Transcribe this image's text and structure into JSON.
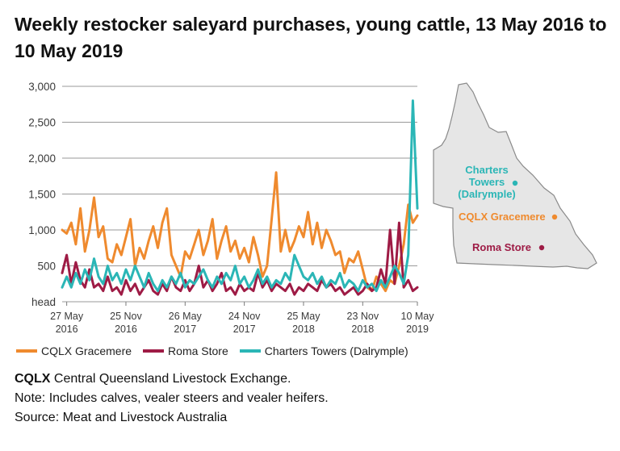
{
  "title": "Weekly restocker saleyard purchases, young cattle, 13 May 2016 to 10 May 2019",
  "chart_data": {
    "type": "line",
    "ylabel_unit": "head",
    "ylim": [
      0,
      3000
    ],
    "yticks": [
      "3,000",
      "2,500",
      "2,000",
      "1,500",
      "1,000",
      "500"
    ],
    "xticks": [
      {
        "date": "2016-05-27",
        "l1": "27 May",
        "l2": "2016"
      },
      {
        "date": "2016-11-25",
        "l1": "25 Nov",
        "l2": "2016"
      },
      {
        "date": "2017-05-26",
        "l1": "26 May",
        "l2": "2017"
      },
      {
        "date": "2017-11-24",
        "l1": "24 Nov",
        "l2": "2017"
      },
      {
        "date": "2018-05-25",
        "l1": "25 May",
        "l2": "2018"
      },
      {
        "date": "2018-11-23",
        "l1": "23 Nov",
        "l2": "2018"
      },
      {
        "date": "2019-05-10",
        "l1": "10 May",
        "l2": "2019"
      }
    ],
    "xrange": [
      "2016-05-13",
      "2019-05-10"
    ],
    "grid": true,
    "legend_position": "bottom",
    "series": [
      {
        "name": "CQLX Gracemere",
        "color": "#ef8a2e",
        "points": [
          [
            "2016-05-13",
            1000
          ],
          [
            "2016-05-27",
            950
          ],
          [
            "2016-06-10",
            1100
          ],
          [
            "2016-06-24",
            800
          ],
          [
            "2016-07-08",
            1300
          ],
          [
            "2016-07-22",
            700
          ],
          [
            "2016-08-05",
            1000
          ],
          [
            "2016-08-19",
            1450
          ],
          [
            "2016-09-02",
            900
          ],
          [
            "2016-09-16",
            1050
          ],
          [
            "2016-09-30",
            600
          ],
          [
            "2016-10-14",
            550
          ],
          [
            "2016-10-28",
            800
          ],
          [
            "2016-11-11",
            650
          ],
          [
            "2016-11-25",
            900
          ],
          [
            "2016-12-09",
            1150
          ],
          [
            "2016-12-23",
            500
          ],
          [
            "2017-01-06",
            750
          ],
          [
            "2017-01-20",
            600
          ],
          [
            "2017-02-03",
            850
          ],
          [
            "2017-02-17",
            1050
          ],
          [
            "2017-03-03",
            750
          ],
          [
            "2017-03-17",
            1100
          ],
          [
            "2017-03-31",
            1300
          ],
          [
            "2017-04-14",
            650
          ],
          [
            "2017-04-28",
            500
          ],
          [
            "2017-05-12",
            350
          ],
          [
            "2017-05-26",
            700
          ],
          [
            "2017-06-09",
            600
          ],
          [
            "2017-06-23",
            800
          ],
          [
            "2017-07-07",
            1000
          ],
          [
            "2017-07-21",
            650
          ],
          [
            "2017-08-04",
            850
          ],
          [
            "2017-08-18",
            1150
          ],
          [
            "2017-09-01",
            600
          ],
          [
            "2017-09-15",
            850
          ],
          [
            "2017-09-29",
            1050
          ],
          [
            "2017-10-13",
            700
          ],
          [
            "2017-10-27",
            850
          ],
          [
            "2017-11-10",
            600
          ],
          [
            "2017-11-24",
            750
          ],
          [
            "2017-12-08",
            550
          ],
          [
            "2017-12-22",
            900
          ],
          [
            "2018-01-05",
            650
          ],
          [
            "2018-01-19",
            350
          ],
          [
            "2018-02-02",
            500
          ],
          [
            "2018-02-16",
            1150
          ],
          [
            "2018-03-02",
            1800
          ],
          [
            "2018-03-16",
            700
          ],
          [
            "2018-03-30",
            1000
          ],
          [
            "2018-04-13",
            700
          ],
          [
            "2018-04-27",
            850
          ],
          [
            "2018-05-11",
            1050
          ],
          [
            "2018-05-25",
            900
          ],
          [
            "2018-06-08",
            1250
          ],
          [
            "2018-06-22",
            800
          ],
          [
            "2018-07-06",
            1100
          ],
          [
            "2018-07-20",
            750
          ],
          [
            "2018-08-03",
            1000
          ],
          [
            "2018-08-17",
            850
          ],
          [
            "2018-08-31",
            650
          ],
          [
            "2018-09-14",
            700
          ],
          [
            "2018-09-28",
            400
          ],
          [
            "2018-10-12",
            600
          ],
          [
            "2018-10-26",
            550
          ],
          [
            "2018-11-09",
            700
          ],
          [
            "2018-11-23",
            450
          ],
          [
            "2018-12-07",
            200
          ],
          [
            "2018-12-21",
            150
          ],
          [
            "2019-01-04",
            350
          ],
          [
            "2019-01-18",
            250
          ],
          [
            "2019-02-01",
            150
          ],
          [
            "2019-02-15",
            300
          ],
          [
            "2019-03-01",
            250
          ],
          [
            "2019-03-15",
            500
          ],
          [
            "2019-03-29",
            800
          ],
          [
            "2019-04-12",
            1350
          ],
          [
            "2019-04-26",
            1100
          ],
          [
            "2019-05-10",
            1200
          ]
        ]
      },
      {
        "name": "Roma Store",
        "color": "#9e1b45",
        "points": [
          [
            "2016-05-13",
            400
          ],
          [
            "2016-05-27",
            650
          ],
          [
            "2016-06-10",
            250
          ],
          [
            "2016-06-24",
            550
          ],
          [
            "2016-07-08",
            300
          ],
          [
            "2016-07-22",
            200
          ],
          [
            "2016-08-05",
            450
          ],
          [
            "2016-08-19",
            200
          ],
          [
            "2016-09-02",
            250
          ],
          [
            "2016-09-16",
            150
          ],
          [
            "2016-09-30",
            350
          ],
          [
            "2016-10-14",
            150
          ],
          [
            "2016-10-28",
            200
          ],
          [
            "2016-11-11",
            100
          ],
          [
            "2016-11-25",
            300
          ],
          [
            "2016-12-09",
            150
          ],
          [
            "2016-12-23",
            250
          ],
          [
            "2017-01-06",
            100
          ],
          [
            "2017-01-20",
            200
          ],
          [
            "2017-02-03",
            300
          ],
          [
            "2017-02-17",
            150
          ],
          [
            "2017-03-03",
            100
          ],
          [
            "2017-03-17",
            250
          ],
          [
            "2017-03-31",
            150
          ],
          [
            "2017-04-14",
            350
          ],
          [
            "2017-04-28",
            200
          ],
          [
            "2017-05-12",
            150
          ],
          [
            "2017-05-26",
            300
          ],
          [
            "2017-06-09",
            150
          ],
          [
            "2017-06-23",
            250
          ],
          [
            "2017-07-07",
            500
          ],
          [
            "2017-07-21",
            200
          ],
          [
            "2017-08-04",
            300
          ],
          [
            "2017-08-18",
            150
          ],
          [
            "2017-09-01",
            250
          ],
          [
            "2017-09-15",
            400
          ],
          [
            "2017-09-29",
            150
          ],
          [
            "2017-10-13",
            200
          ],
          [
            "2017-10-27",
            100
          ],
          [
            "2017-11-10",
            250
          ],
          [
            "2017-11-24",
            150
          ],
          [
            "2017-12-08",
            200
          ],
          [
            "2017-12-22",
            150
          ],
          [
            "2018-01-05",
            400
          ],
          [
            "2018-01-19",
            200
          ],
          [
            "2018-02-02",
            300
          ],
          [
            "2018-02-16",
            150
          ],
          [
            "2018-03-02",
            250
          ],
          [
            "2018-03-16",
            200
          ],
          [
            "2018-03-30",
            150
          ],
          [
            "2018-04-13",
            250
          ],
          [
            "2018-04-27",
            100
          ],
          [
            "2018-05-11",
            200
          ],
          [
            "2018-05-25",
            150
          ],
          [
            "2018-06-08",
            250
          ],
          [
            "2018-06-22",
            200
          ],
          [
            "2018-07-06",
            150
          ],
          [
            "2018-07-20",
            300
          ],
          [
            "2018-08-03",
            200
          ],
          [
            "2018-08-17",
            250
          ],
          [
            "2018-08-31",
            150
          ],
          [
            "2018-09-14",
            200
          ],
          [
            "2018-09-28",
            100
          ],
          [
            "2018-10-12",
            150
          ],
          [
            "2018-10-26",
            200
          ],
          [
            "2018-11-09",
            100
          ],
          [
            "2018-11-23",
            150
          ],
          [
            "2018-12-07",
            250
          ],
          [
            "2018-12-21",
            150
          ],
          [
            "2019-01-04",
            200
          ],
          [
            "2019-01-18",
            450
          ],
          [
            "2019-02-01",
            250
          ],
          [
            "2019-02-15",
            1000
          ],
          [
            "2019-03-01",
            250
          ],
          [
            "2019-03-15",
            1100
          ],
          [
            "2019-03-29",
            200
          ],
          [
            "2019-04-12",
            300
          ],
          [
            "2019-04-26",
            150
          ],
          [
            "2019-05-10",
            200
          ]
        ]
      },
      {
        "name": "Charters Towers (Dalrymple)",
        "color": "#2bb6b6",
        "points": [
          [
            "2016-05-13",
            200
          ],
          [
            "2016-05-27",
            350
          ],
          [
            "2016-06-10",
            200
          ],
          [
            "2016-06-24",
            400
          ],
          [
            "2016-07-08",
            250
          ],
          [
            "2016-07-22",
            450
          ],
          [
            "2016-08-05",
            300
          ],
          [
            "2016-08-19",
            600
          ],
          [
            "2016-09-02",
            350
          ],
          [
            "2016-09-16",
            250
          ],
          [
            "2016-09-30",
            500
          ],
          [
            "2016-10-14",
            300
          ],
          [
            "2016-10-28",
            400
          ],
          [
            "2016-11-11",
            250
          ],
          [
            "2016-11-25",
            450
          ],
          [
            "2016-12-09",
            300
          ],
          [
            "2016-12-23",
            500
          ],
          [
            "2017-01-06",
            350
          ],
          [
            "2017-01-20",
            200
          ],
          [
            "2017-02-03",
            400
          ],
          [
            "2017-02-17",
            250
          ],
          [
            "2017-03-03",
            150
          ],
          [
            "2017-03-17",
            300
          ],
          [
            "2017-03-31",
            200
          ],
          [
            "2017-04-14",
            350
          ],
          [
            "2017-04-28",
            250
          ],
          [
            "2017-05-12",
            400
          ],
          [
            "2017-05-26",
            200
          ],
          [
            "2017-06-09",
            300
          ],
          [
            "2017-06-23",
            250
          ],
          [
            "2017-07-07",
            350
          ],
          [
            "2017-07-21",
            450
          ],
          [
            "2017-08-04",
            300
          ],
          [
            "2017-08-18",
            200
          ],
          [
            "2017-09-01",
            350
          ],
          [
            "2017-09-15",
            250
          ],
          [
            "2017-09-29",
            400
          ],
          [
            "2017-10-13",
            300
          ],
          [
            "2017-10-27",
            500
          ],
          [
            "2017-11-10",
            250
          ],
          [
            "2017-11-24",
            350
          ],
          [
            "2017-12-08",
            200
          ],
          [
            "2017-12-22",
            300
          ],
          [
            "2018-01-05",
            450
          ],
          [
            "2018-01-19",
            250
          ],
          [
            "2018-02-02",
            350
          ],
          [
            "2018-02-16",
            200
          ],
          [
            "2018-03-02",
            300
          ],
          [
            "2018-03-16",
            250
          ],
          [
            "2018-03-30",
            400
          ],
          [
            "2018-04-13",
            300
          ],
          [
            "2018-04-27",
            650
          ],
          [
            "2018-05-11",
            500
          ],
          [
            "2018-05-25",
            350
          ],
          [
            "2018-06-08",
            300
          ],
          [
            "2018-06-22",
            400
          ],
          [
            "2018-07-06",
            250
          ],
          [
            "2018-07-20",
            350
          ],
          [
            "2018-08-03",
            200
          ],
          [
            "2018-08-17",
            300
          ],
          [
            "2018-08-31",
            250
          ],
          [
            "2018-09-14",
            400
          ],
          [
            "2018-09-28",
            200
          ],
          [
            "2018-10-12",
            300
          ],
          [
            "2018-10-26",
            250
          ],
          [
            "2018-11-09",
            150
          ],
          [
            "2018-11-23",
            300
          ],
          [
            "2018-12-07",
            200
          ],
          [
            "2018-12-21",
            250
          ],
          [
            "2019-01-04",
            150
          ],
          [
            "2019-01-18",
            300
          ],
          [
            "2019-02-01",
            200
          ],
          [
            "2019-02-15",
            350
          ],
          [
            "2019-03-01",
            500
          ],
          [
            "2019-03-15",
            400
          ],
          [
            "2019-03-29",
            250
          ],
          [
            "2019-04-12",
            650
          ],
          [
            "2019-04-26",
            2800
          ],
          [
            "2019-05-10",
            1300
          ]
        ]
      }
    ]
  },
  "map": {
    "fill": "#e6e6e6",
    "outline": "#8a8a8a",
    "labels": [
      {
        "lines": [
          "Charters",
          "Towers",
          "(Dalrymple)"
        ],
        "color": "#2bb6b6"
      },
      {
        "lines": [
          "CQLX Gracemere"
        ],
        "color": "#ef8a2e"
      },
      {
        "lines": [
          "Roma Store"
        ],
        "color": "#9e1b45"
      }
    ]
  },
  "legend": [
    {
      "label": "CQLX Gracemere",
      "color": "#ef8a2e"
    },
    {
      "label": "Roma Store",
      "color": "#9e1b45"
    },
    {
      "label": "Charters Towers (Dalrymple)",
      "color": "#2bb6b6"
    }
  ],
  "notes": {
    "abbr": "CQLX",
    "abbr_text": " Central Queensland Livestock Exchange.",
    "note": "Note: Includes calves, vealer steers and vealer heifers.",
    "source": "Source: Meat and Livestock Australia"
  }
}
